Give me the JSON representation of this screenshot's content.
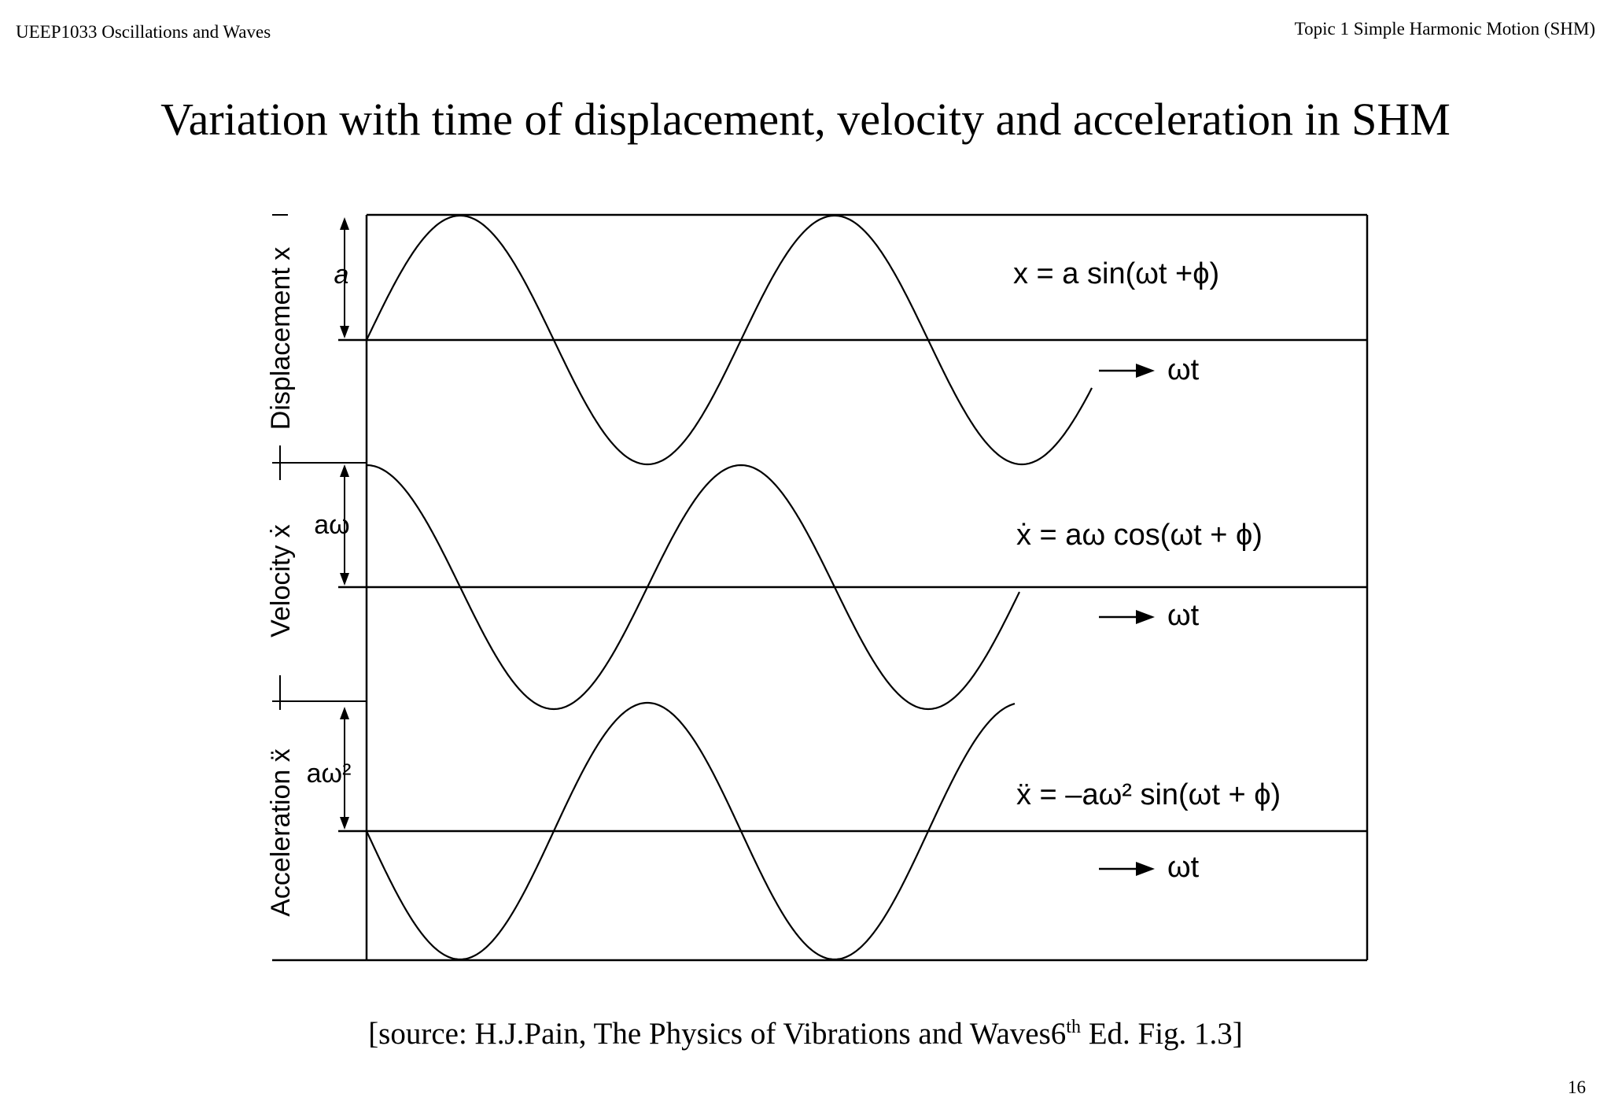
{
  "header": {
    "course": "UEEP1033 Oscillations and Waves",
    "topic": "Topic 1 Simple Harmonic Motion (SHM)"
  },
  "slide_title": "Variation with time of displacement, velocity and acceleration in SHM",
  "figure": {
    "panels": [
      {
        "axis_label": "Displacement x",
        "amplitude_label": "a",
        "equation": "x = a sin(ωt +ϕ)",
        "time_axis_label": "ωt",
        "function": "sin",
        "amplitude_sign": 1
      },
      {
        "axis_label": "Velocity ẋ",
        "amplitude_label": "aω",
        "equation": "ẋ = aω cos(ωt + ϕ)",
        "time_axis_label": "ωt",
        "function": "cos",
        "amplitude_sign": 1
      },
      {
        "axis_label": "Acceleration ẍ",
        "amplitude_label": "aω²",
        "equation": "ẍ = –aω² sin(ωt + ϕ)",
        "time_axis_label": "ωt",
        "function": "sin",
        "amplitude_sign": -1
      }
    ]
  },
  "source": {
    "prefix": "[source: H.J.Pain, The Physics of Vibrations and Waves6",
    "superscript": "th",
    "suffix": " Ed. Fig.  1.3]"
  },
  "page_number": "16",
  "colors": {
    "ink": "#000000",
    "background": "#ffffff"
  }
}
